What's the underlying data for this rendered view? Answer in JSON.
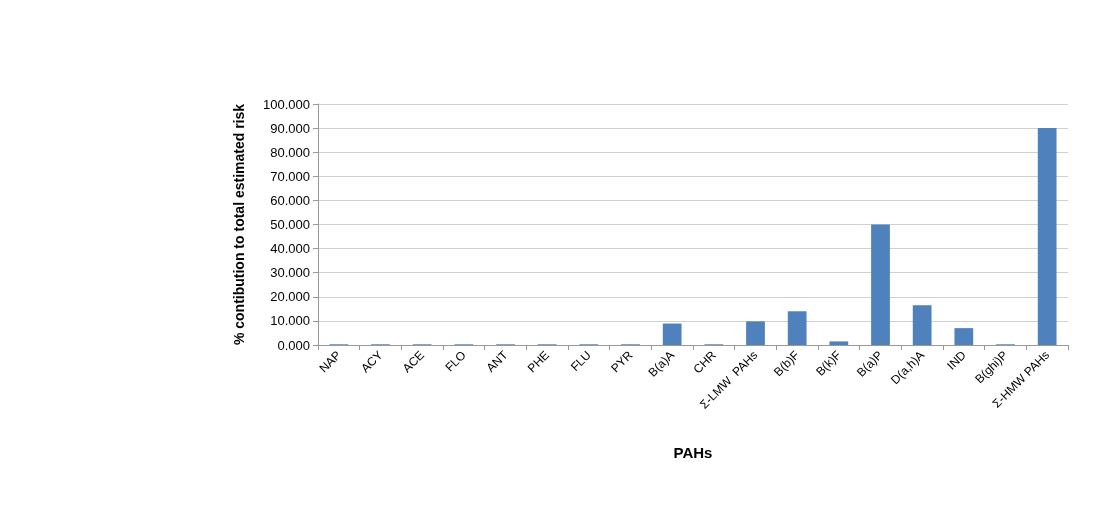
{
  "chart_data": {
    "type": "bar",
    "xlabel": "PAHs",
    "ylabel": "% contibution to total estimated risk",
    "categories": [
      "NAP",
      "ACY",
      "ACE",
      "FLO",
      "ANT",
      "PHE",
      "FLU",
      "PYR",
      "B(a)A",
      "CHR",
      "Σ-LMW  PAHs",
      "B(b)F",
      "B(k)F",
      "B(a)P",
      "D(a,h)A",
      "IND",
      "B(ghi)P",
      "Σ-HMW PAHs"
    ],
    "values": [
      0.3,
      0.3,
      0.3,
      0.3,
      0.3,
      0.3,
      0.3,
      0.3,
      8.9,
      0.3,
      9.8,
      14,
      1.5,
      50,
      16.5,
      7,
      0.3,
      90
    ],
    "color": "#4f81bd",
    "ylim": [
      0,
      100
    ],
    "yticks": [
      {
        "value": 0,
        "label": "0.000"
      },
      {
        "value": 10,
        "label": "10.000"
      },
      {
        "value": 20,
        "label": "20.000"
      },
      {
        "value": 30,
        "label": "30.000"
      },
      {
        "value": 40,
        "label": "40.000"
      },
      {
        "value": 50,
        "label": "50.000"
      },
      {
        "value": 60,
        "label": "60.000"
      },
      {
        "value": 70,
        "label": "70.000"
      },
      {
        "value": 80,
        "label": "80.000"
      },
      {
        "value": 90,
        "label": "90.000"
      },
      {
        "value": 100,
        "label": "100.000"
      }
    ],
    "grid": "y"
  }
}
